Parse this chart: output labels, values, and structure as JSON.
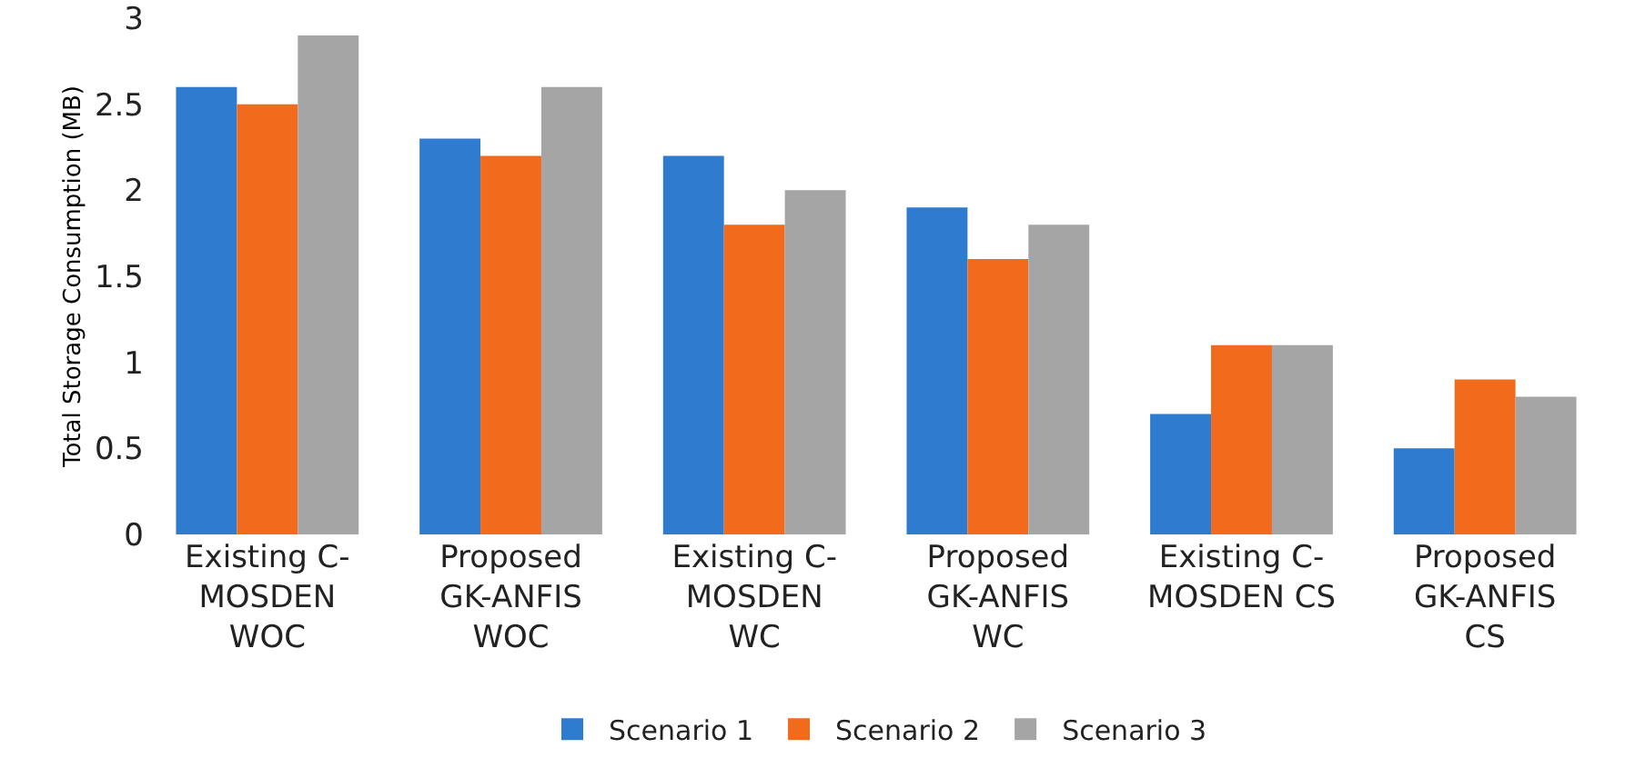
{
  "chart_data": {
    "type": "bar",
    "ylabel": "Total Storage Consumption (MB)",
    "categories": [
      "Existing C-\nMOSDEN\nWOC",
      "Proposed\nGK-ANFIS\nWOC",
      "Existing C-\nMOSDEN\nWC",
      "Proposed\nGK-ANFIS\nWC",
      "Existing C-\nMOSDEN CS",
      "Proposed\nGK-ANFIS\nCS"
    ],
    "series": [
      {
        "name": "Scenario 1",
        "color": "#2f7bd0",
        "values": [
          2.6,
          2.3,
          2.2,
          1.9,
          0.7,
          0.5
        ]
      },
      {
        "name": "Scenario 2",
        "color": "#f26a1b",
        "values": [
          2.5,
          2.2,
          1.8,
          1.6,
          1.1,
          0.9
        ]
      },
      {
        "name": "Scenario 3",
        "color": "#a5a5a5",
        "values": [
          2.9,
          2.6,
          2.0,
          1.8,
          1.1,
          0.8
        ]
      }
    ],
    "ylim": [
      0,
      3
    ],
    "yticks": [
      0,
      0.5,
      1,
      1.5,
      2,
      2.5,
      3
    ],
    "grid": false,
    "legend": "bottom"
  }
}
